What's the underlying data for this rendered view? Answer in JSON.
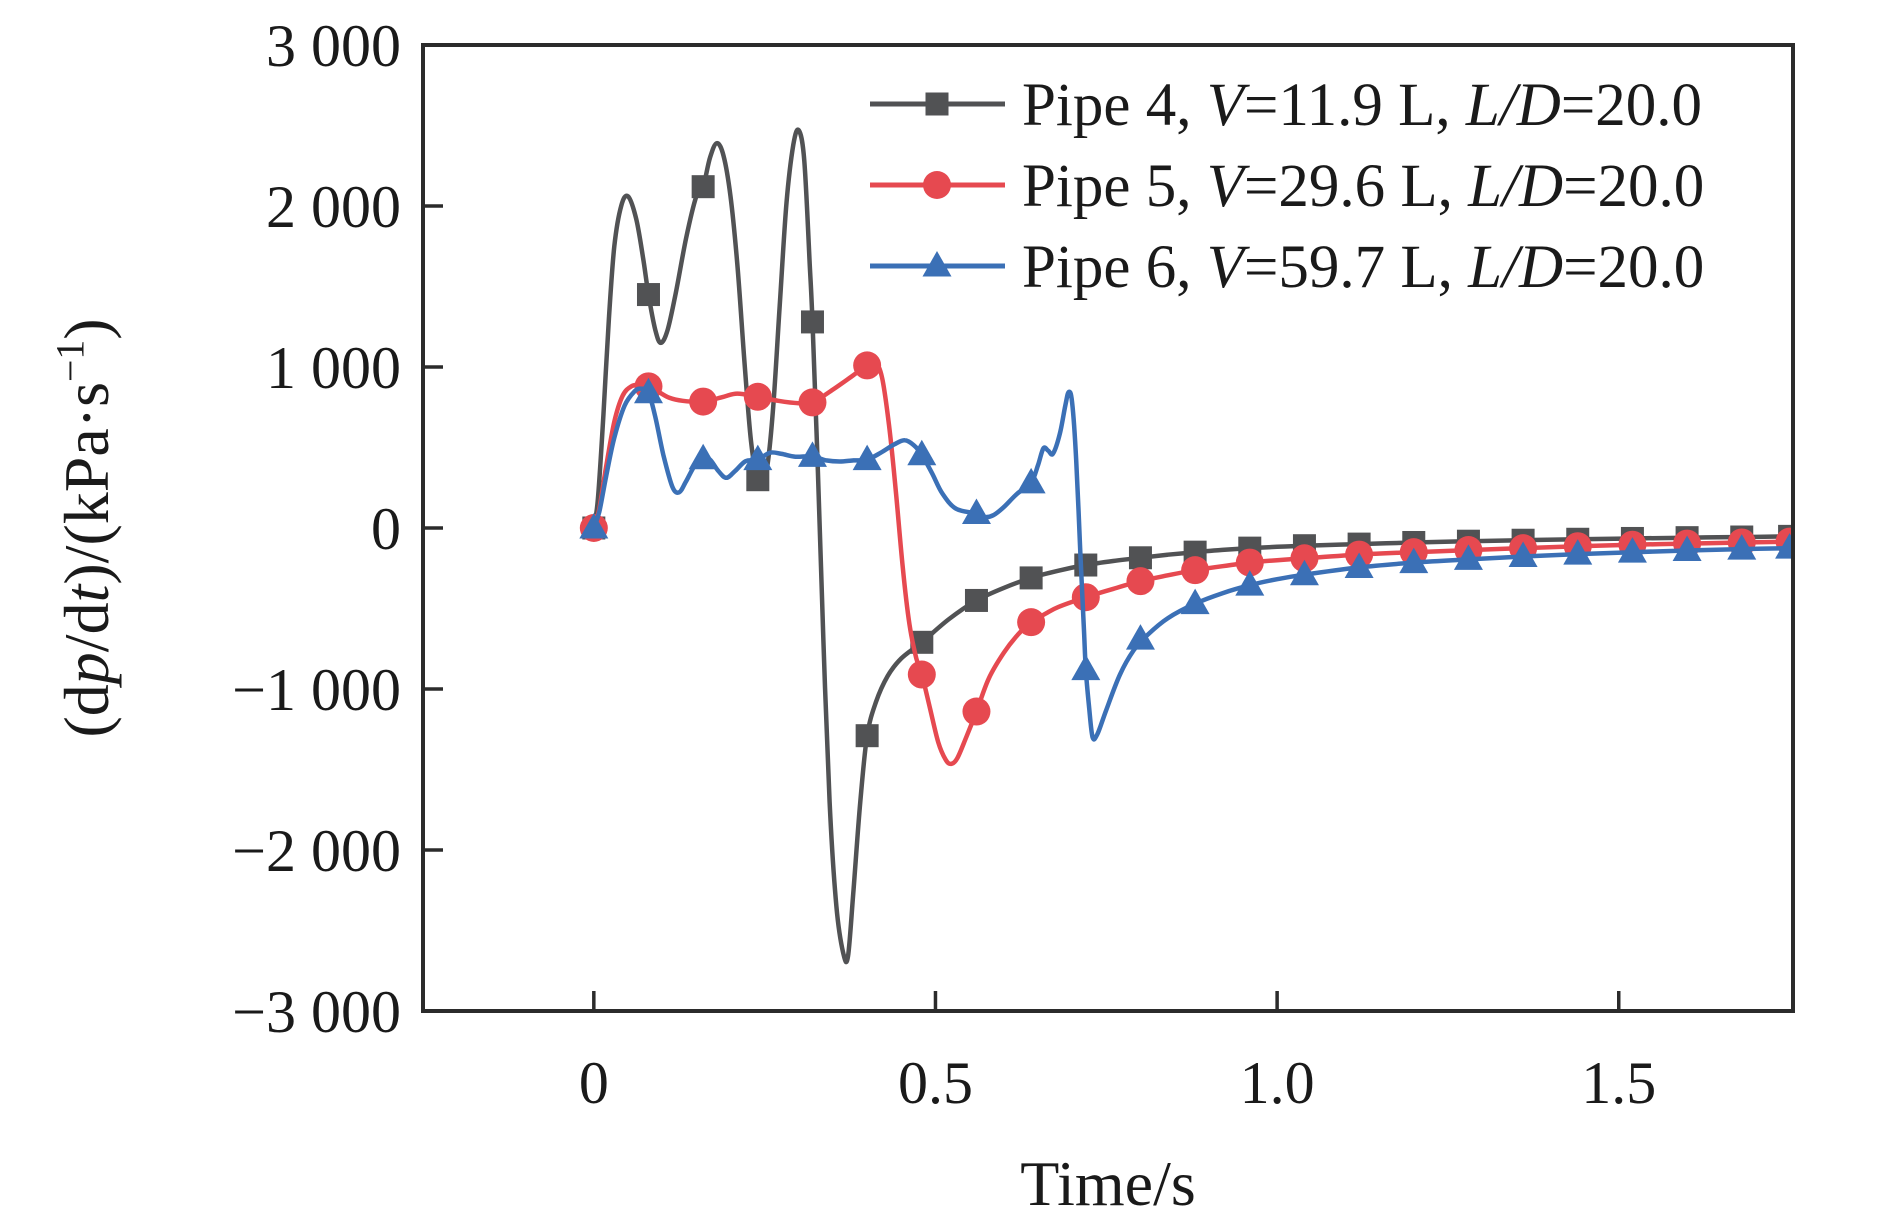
{
  "figure": {
    "background": "#ffffff",
    "frame_color": "#2b2b2b",
    "text_color": "#1a1a1a"
  },
  "chart_data": {
    "type": "line",
    "title": "",
    "xlabel": "Time/s",
    "ylabel": "(dp/dt)/(kPa·s⁻¹)",
    "ylabel_segments": [
      {
        "t": "(d"
      },
      {
        "t": "p",
        "i": true
      },
      {
        "t": "/d"
      },
      {
        "t": "t",
        "i": true
      },
      {
        "t": ")/(kPa·s"
      },
      {
        "t": "−1",
        "sup": true
      },
      {
        "t": ")"
      }
    ],
    "xlim": [
      -0.25,
      1.755
    ],
    "ylim": [
      -3000,
      3000
    ],
    "x_ticks": [
      0,
      0.5,
      1.0,
      1.5
    ],
    "x_tick_labels": [
      "0",
      "0.5",
      "1.0",
      "1.5"
    ],
    "y_ticks": [
      3000,
      2000,
      1000,
      0,
      -1000,
      -2000,
      -3000
    ],
    "y_tick_labels": [
      "3 000",
      "2 000",
      "1 000",
      "0",
      "−1 000",
      "−2 000",
      "−3 000"
    ],
    "grid": false,
    "legend_position": "top-right-inside",
    "series": [
      {
        "name": "Pipe 4",
        "label_text": "Pipe 4, V=11.9 L, L/D=20.0",
        "label_segments": [
          {
            "t": "Pipe 4, "
          },
          {
            "t": "V",
            "i": true
          },
          {
            "t": "=11.9 L, "
          },
          {
            "t": "L/D",
            "i": true
          },
          {
            "t": "=20.0"
          }
        ],
        "color": "#515254",
        "marker": "square",
        "line": [
          [
            0,
            0
          ],
          [
            0.006,
            180
          ],
          [
            0.014,
            700
          ],
          [
            0.022,
            1300
          ],
          [
            0.03,
            1750
          ],
          [
            0.04,
            2000
          ],
          [
            0.05,
            2060
          ],
          [
            0.062,
            1920
          ],
          [
            0.072,
            1680
          ],
          [
            0.08,
            1450
          ],
          [
            0.09,
            1230
          ],
          [
            0.098,
            1150
          ],
          [
            0.108,
            1230
          ],
          [
            0.12,
            1460
          ],
          [
            0.135,
            1800
          ],
          [
            0.15,
            2060
          ],
          [
            0.16,
            2120
          ],
          [
            0.17,
            2300
          ],
          [
            0.18,
            2390
          ],
          [
            0.19,
            2310
          ],
          [
            0.2,
            2060
          ],
          [
            0.21,
            1640
          ],
          [
            0.22,
            1060
          ],
          [
            0.23,
            540
          ],
          [
            0.24,
            300
          ],
          [
            0.252,
            340
          ],
          [
            0.262,
            720
          ],
          [
            0.272,
            1380
          ],
          [
            0.282,
            2020
          ],
          [
            0.292,
            2380
          ],
          [
            0.3,
            2470
          ],
          [
            0.308,
            2280
          ],
          [
            0.316,
            1640
          ],
          [
            0.32,
            1280
          ],
          [
            0.328,
            350
          ],
          [
            0.336,
            -700
          ],
          [
            0.345,
            -1700
          ],
          [
            0.355,
            -2350
          ],
          [
            0.365,
            -2640
          ],
          [
            0.372,
            -2660
          ],
          [
            0.38,
            -2250
          ],
          [
            0.39,
            -1700
          ],
          [
            0.4,
            -1290
          ],
          [
            0.413,
            -1080
          ],
          [
            0.43,
            -920
          ],
          [
            0.45,
            -810
          ],
          [
            0.48,
            -710
          ],
          [
            0.52,
            -565
          ],
          [
            0.56,
            -450
          ],
          [
            0.6,
            -372
          ],
          [
            0.64,
            -310
          ],
          [
            0.68,
            -265
          ],
          [
            0.72,
            -230
          ],
          [
            0.76,
            -205
          ],
          [
            0.8,
            -185
          ],
          [
            0.84,
            -166
          ],
          [
            0.88,
            -150
          ],
          [
            0.92,
            -136
          ],
          [
            0.96,
            -125
          ],
          [
            1.0,
            -117
          ],
          [
            1.04,
            -110
          ],
          [
            1.12,
            -100
          ],
          [
            1.2,
            -90
          ],
          [
            1.28,
            -82
          ],
          [
            1.36,
            -76
          ],
          [
            1.44,
            -70
          ],
          [
            1.52,
            -65
          ],
          [
            1.6,
            -60
          ],
          [
            1.68,
            -56
          ],
          [
            1.75,
            -52
          ]
        ],
        "markers": [
          [
            0,
            0
          ],
          [
            0.08,
            1450
          ],
          [
            0.16,
            2120
          ],
          [
            0.24,
            300
          ],
          [
            0.32,
            1280
          ],
          [
            0.4,
            -1290
          ],
          [
            0.48,
            -710
          ],
          [
            0.56,
            -450
          ],
          [
            0.64,
            -310
          ],
          [
            0.72,
            -230
          ],
          [
            0.8,
            -185
          ],
          [
            0.88,
            -150
          ],
          [
            0.96,
            -125
          ],
          [
            1.04,
            -110
          ],
          [
            1.12,
            -100
          ],
          [
            1.2,
            -90
          ],
          [
            1.28,
            -82
          ],
          [
            1.36,
            -76
          ],
          [
            1.44,
            -70
          ],
          [
            1.52,
            -65
          ],
          [
            1.6,
            -60
          ],
          [
            1.68,
            -56
          ],
          [
            1.75,
            -52
          ]
        ]
      },
      {
        "name": "Pipe 5",
        "label_text": "Pipe 5, V=29.6 L, L/D=20.0",
        "label_segments": [
          {
            "t": "Pipe 5, "
          },
          {
            "t": "V",
            "i": true
          },
          {
            "t": "=29.6 L, "
          },
          {
            "t": "L/D",
            "i": true
          },
          {
            "t": "=20.0"
          }
        ],
        "color": "#e64950",
        "marker": "circle",
        "line": [
          [
            0,
            0
          ],
          [
            0.008,
            120
          ],
          [
            0.018,
            380
          ],
          [
            0.03,
            660
          ],
          [
            0.042,
            820
          ],
          [
            0.055,
            880
          ],
          [
            0.07,
            890
          ],
          [
            0.08,
            880
          ],
          [
            0.095,
            845
          ],
          [
            0.11,
            810
          ],
          [
            0.13,
            790
          ],
          [
            0.16,
            785
          ],
          [
            0.19,
            815
          ],
          [
            0.21,
            835
          ],
          [
            0.24,
            815
          ],
          [
            0.27,
            790
          ],
          [
            0.3,
            775
          ],
          [
            0.32,
            780
          ],
          [
            0.35,
            860
          ],
          [
            0.38,
            950
          ],
          [
            0.4,
            1010
          ],
          [
            0.412,
            1030
          ],
          [
            0.422,
            930
          ],
          [
            0.432,
            640
          ],
          [
            0.442,
            230
          ],
          [
            0.452,
            -240
          ],
          [
            0.462,
            -600
          ],
          [
            0.472,
            -810
          ],
          [
            0.48,
            -910
          ],
          [
            0.492,
            -1120
          ],
          [
            0.504,
            -1330
          ],
          [
            0.515,
            -1440
          ],
          [
            0.523,
            -1465
          ],
          [
            0.532,
            -1430
          ],
          [
            0.545,
            -1300
          ],
          [
            0.56,
            -1140
          ],
          [
            0.578,
            -935
          ],
          [
            0.6,
            -775
          ],
          [
            0.62,
            -665
          ],
          [
            0.64,
            -585
          ],
          [
            0.66,
            -535
          ],
          [
            0.68,
            -490
          ],
          [
            0.72,
            -430
          ],
          [
            0.76,
            -378
          ],
          [
            0.8,
            -330
          ],
          [
            0.84,
            -294
          ],
          [
            0.88,
            -262
          ],
          [
            0.92,
            -237
          ],
          [
            0.96,
            -215
          ],
          [
            1.0,
            -200
          ],
          [
            1.04,
            -188
          ],
          [
            1.12,
            -165
          ],
          [
            1.2,
            -150
          ],
          [
            1.28,
            -137
          ],
          [
            1.36,
            -125
          ],
          [
            1.44,
            -113
          ],
          [
            1.52,
            -104
          ],
          [
            1.6,
            -97
          ],
          [
            1.68,
            -90
          ],
          [
            1.75,
            -85
          ]
        ],
        "markers": [
          [
            0,
            0
          ],
          [
            0.08,
            880
          ],
          [
            0.16,
            785
          ],
          [
            0.24,
            815
          ],
          [
            0.32,
            780
          ],
          [
            0.4,
            1010
          ],
          [
            0.48,
            -910
          ],
          [
            0.56,
            -1140
          ],
          [
            0.64,
            -585
          ],
          [
            0.72,
            -430
          ],
          [
            0.8,
            -330
          ],
          [
            0.88,
            -262
          ],
          [
            0.96,
            -215
          ],
          [
            1.04,
            -188
          ],
          [
            1.12,
            -165
          ],
          [
            1.2,
            -150
          ],
          [
            1.28,
            -137
          ],
          [
            1.36,
            -125
          ],
          [
            1.44,
            -113
          ],
          [
            1.52,
            -104
          ],
          [
            1.6,
            -97
          ],
          [
            1.68,
            -90
          ],
          [
            1.75,
            -85
          ]
        ]
      },
      {
        "name": "Pipe 6",
        "label_text": "Pipe 6, V=59.7 L, L/D=20.0",
        "label_segments": [
          {
            "t": "Pipe 6, "
          },
          {
            "t": "V",
            "i": true
          },
          {
            "t": "=59.7 L, "
          },
          {
            "t": "L/D",
            "i": true
          },
          {
            "t": "=20.0"
          }
        ],
        "color": "#3b70b6",
        "marker": "triangle",
        "line": [
          [
            0,
            0
          ],
          [
            0.008,
            100
          ],
          [
            0.018,
            320
          ],
          [
            0.03,
            560
          ],
          [
            0.045,
            760
          ],
          [
            0.06,
            850
          ],
          [
            0.07,
            865
          ],
          [
            0.08,
            840
          ],
          [
            0.09,
            690
          ],
          [
            0.102,
            450
          ],
          [
            0.115,
            255
          ],
          [
            0.125,
            222
          ],
          [
            0.135,
            290
          ],
          [
            0.148,
            390
          ],
          [
            0.16,
            430
          ],
          [
            0.17,
            425
          ],
          [
            0.182,
            355
          ],
          [
            0.194,
            312
          ],
          [
            0.207,
            355
          ],
          [
            0.222,
            415
          ],
          [
            0.24,
            425
          ],
          [
            0.258,
            468
          ],
          [
            0.275,
            460
          ],
          [
            0.295,
            443
          ],
          [
            0.32,
            445
          ],
          [
            0.34,
            420
          ],
          [
            0.36,
            413
          ],
          [
            0.38,
            420
          ],
          [
            0.4,
            425
          ],
          [
            0.42,
            468
          ],
          [
            0.44,
            520
          ],
          [
            0.455,
            545
          ],
          [
            0.468,
            515
          ],
          [
            0.48,
            455
          ],
          [
            0.495,
            340
          ],
          [
            0.51,
            215
          ],
          [
            0.53,
            120
          ],
          [
            0.56,
            90
          ],
          [
            0.572,
            68
          ],
          [
            0.585,
            80
          ],
          [
            0.6,
            130
          ],
          [
            0.62,
            215
          ],
          [
            0.64,
            280
          ],
          [
            0.65,
            390
          ],
          [
            0.658,
            495
          ],
          [
            0.665,
            480
          ],
          [
            0.672,
            462
          ],
          [
            0.682,
            585
          ],
          [
            0.69,
            760
          ],
          [
            0.695,
            845
          ],
          [
            0.7,
            780
          ],
          [
            0.706,
            420
          ],
          [
            0.712,
            -150
          ],
          [
            0.717,
            -600
          ],
          [
            0.72,
            -880
          ],
          [
            0.725,
            -1120
          ],
          [
            0.73,
            -1300
          ],
          [
            0.737,
            -1280
          ],
          [
            0.75,
            -1130
          ],
          [
            0.77,
            -910
          ],
          [
            0.79,
            -760
          ],
          [
            0.81,
            -665
          ],
          [
            0.84,
            -560
          ],
          [
            0.88,
            -470
          ],
          [
            0.92,
            -405
          ],
          [
            0.96,
            -355
          ],
          [
            1.0,
            -318
          ],
          [
            1.04,
            -290
          ],
          [
            1.12,
            -245
          ],
          [
            1.2,
            -215
          ],
          [
            1.28,
            -195
          ],
          [
            1.36,
            -177
          ],
          [
            1.44,
            -162
          ],
          [
            1.52,
            -150
          ],
          [
            1.6,
            -140
          ],
          [
            1.68,
            -131
          ],
          [
            1.75,
            -125
          ]
        ],
        "markers": [
          [
            0,
            0
          ],
          [
            0.08,
            840
          ],
          [
            0.16,
            430
          ],
          [
            0.24,
            425
          ],
          [
            0.32,
            445
          ],
          [
            0.4,
            425
          ],
          [
            0.48,
            455
          ],
          [
            0.56,
            90
          ],
          [
            0.64,
            280
          ],
          [
            0.72,
            -880
          ],
          [
            0.8,
            -690
          ],
          [
            0.88,
            -470
          ],
          [
            0.96,
            -355
          ],
          [
            1.04,
            -290
          ],
          [
            1.12,
            -245
          ],
          [
            1.2,
            -215
          ],
          [
            1.28,
            -195
          ],
          [
            1.36,
            -177
          ],
          [
            1.44,
            -162
          ],
          [
            1.52,
            -150
          ],
          [
            1.6,
            -140
          ],
          [
            1.68,
            -131
          ],
          [
            1.75,
            -125
          ]
        ]
      }
    ]
  }
}
